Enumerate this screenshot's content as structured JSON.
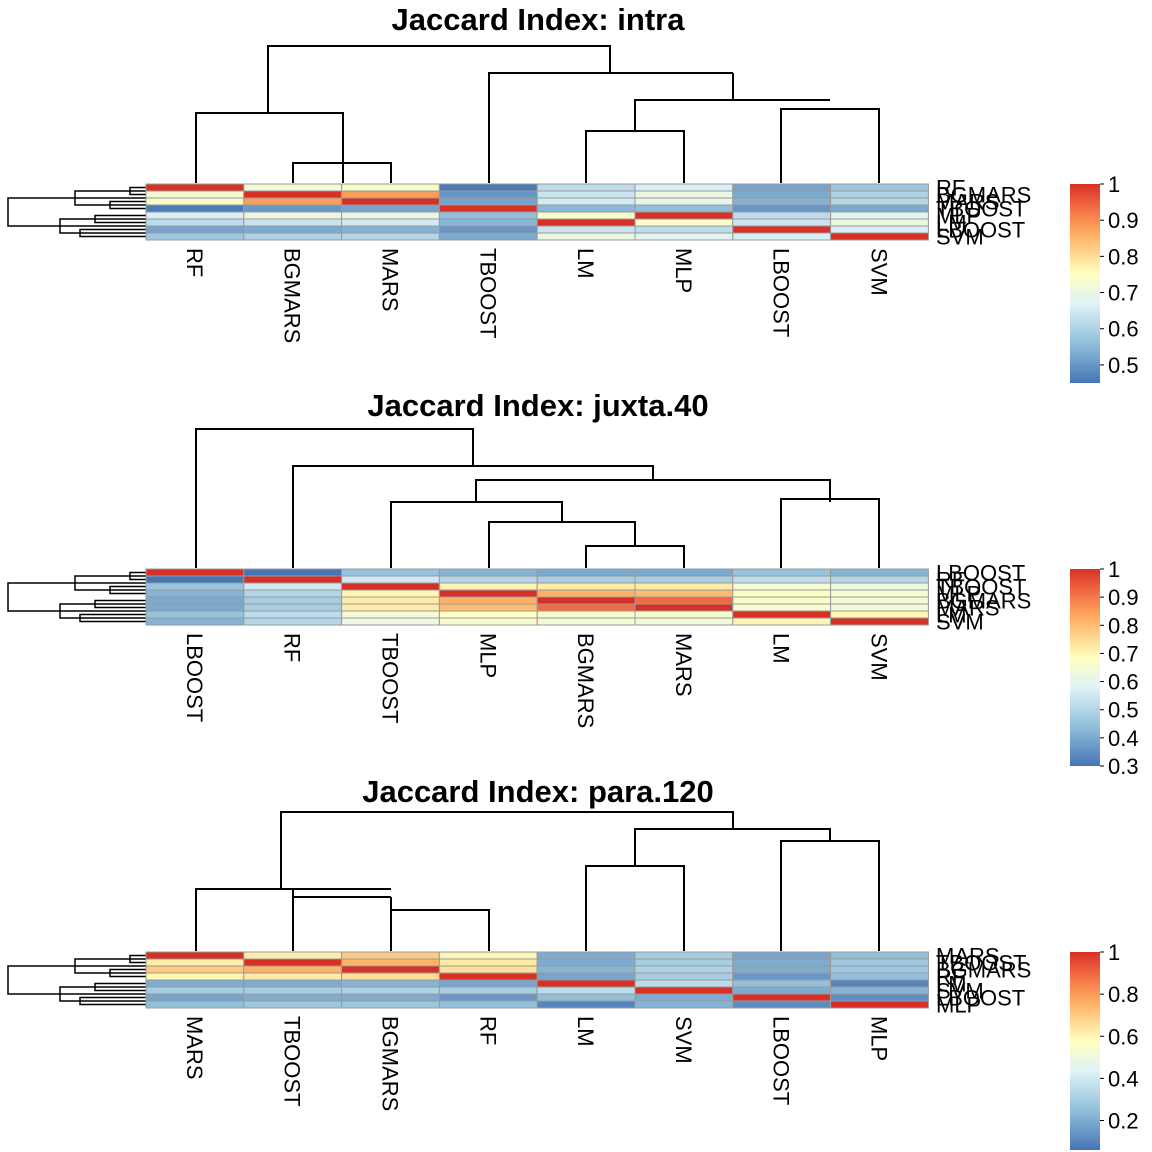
{
  "chart_data": [
    {
      "type": "heatmap",
      "title": "Jaccard Index: intra",
      "columns": [
        "RF",
        "BGMARS",
        "MARS",
        "TBOOST",
        "LM",
        "MLP",
        "LBOOST",
        "SVM"
      ],
      "rows": [
        "RF",
        "BGMARS",
        "MARS",
        "TBOOST",
        "MLP",
        "LM",
        "LBOOST",
        "SVM"
      ],
      "values": [
        [
          1.0,
          0.72,
          0.74,
          0.46,
          0.62,
          0.66,
          0.52,
          0.58
        ],
        [
          0.72,
          1.0,
          0.88,
          0.5,
          0.64,
          0.7,
          0.53,
          0.6
        ],
        [
          0.74,
          0.88,
          1.0,
          0.52,
          0.65,
          0.69,
          0.54,
          0.61
        ],
        [
          0.46,
          0.5,
          0.52,
          1.0,
          0.55,
          0.56,
          0.5,
          0.53
        ],
        [
          0.66,
          0.7,
          0.69,
          0.56,
          0.74,
          1.0,
          0.62,
          0.68
        ],
        [
          0.62,
          0.64,
          0.65,
          0.55,
          1.0,
          0.74,
          0.64,
          0.7
        ],
        [
          0.52,
          0.53,
          0.54,
          0.5,
          0.64,
          0.62,
          1.0,
          0.66
        ],
        [
          0.58,
          0.6,
          0.61,
          0.53,
          0.7,
          0.68,
          0.66,
          1.0
        ]
      ],
      "colorbar": {
        "min": 0.45,
        "max": 1.0,
        "ticks": [
          1,
          0.9,
          0.8,
          0.7,
          0.6,
          0.5
        ]
      }
    },
    {
      "type": "heatmap",
      "title": "Jaccard Index: juxta.40",
      "columns": [
        "LBOOST",
        "RF",
        "TBOOST",
        "MLP",
        "BGMARS",
        "MARS",
        "LM",
        "SVM"
      ],
      "rows": [
        "LBOOST",
        "RF",
        "TBOOST",
        "MLP",
        "BGMARS",
        "MARS",
        "LM",
        "SVM"
      ],
      "values": [
        [
          1.0,
          0.3,
          0.45,
          0.42,
          0.4,
          0.4,
          0.45,
          0.42
        ],
        [
          0.3,
          1.0,
          0.55,
          0.5,
          0.48,
          0.48,
          0.52,
          0.5
        ],
        [
          0.45,
          0.55,
          1.0,
          0.7,
          0.72,
          0.72,
          0.65,
          0.62
        ],
        [
          0.42,
          0.5,
          0.7,
          1.0,
          0.82,
          0.8,
          0.68,
          0.66
        ],
        [
          0.4,
          0.48,
          0.72,
          0.82,
          1.0,
          0.92,
          0.66,
          0.64
        ],
        [
          0.4,
          0.48,
          0.72,
          0.8,
          0.92,
          1.0,
          0.66,
          0.64
        ],
        [
          0.45,
          0.52,
          0.65,
          0.68,
          0.66,
          0.66,
          1.0,
          0.7
        ],
        [
          0.42,
          0.5,
          0.62,
          0.66,
          0.64,
          0.64,
          0.7,
          1.0
        ]
      ],
      "colorbar": {
        "min": 0.3,
        "max": 1.0,
        "ticks": [
          1,
          0.9,
          0.8,
          0.7,
          0.6,
          0.5,
          0.4,
          0.3
        ]
      }
    },
    {
      "type": "heatmap",
      "title": "Jaccard Index: para.120",
      "columns": [
        "MARS",
        "TBOOST",
        "BGMARS",
        "RF",
        "LM",
        "SVM",
        "LBOOST",
        "MLP"
      ],
      "rows": [
        "MARS",
        "TBOOST",
        "BGMARS",
        "RF",
        "LM",
        "SVM",
        "LBOOST",
        "MLP"
      ],
      "values": [
        [
          1.0,
          0.62,
          0.7,
          0.6,
          0.2,
          0.3,
          0.18,
          0.25
        ],
        [
          0.62,
          1.0,
          0.75,
          0.62,
          0.2,
          0.3,
          0.2,
          0.28
        ],
        [
          0.7,
          0.75,
          1.0,
          0.65,
          0.22,
          0.32,
          0.2,
          0.28
        ],
        [
          0.6,
          0.62,
          0.65,
          1.0,
          0.18,
          0.3,
          0.15,
          0.25
        ],
        [
          0.2,
          0.2,
          0.22,
          0.18,
          1.0,
          0.35,
          0.25,
          0.1
        ],
        [
          0.3,
          0.3,
          0.32,
          0.3,
          0.35,
          1.0,
          0.2,
          0.22
        ],
        [
          0.18,
          0.2,
          0.2,
          0.15,
          0.25,
          0.2,
          1.0,
          0.12
        ],
        [
          0.25,
          0.28,
          0.28,
          0.25,
          0.1,
          0.22,
          0.12,
          1.0
        ]
      ],
      "colorbar": {
        "min": 0.06,
        "max": 1.0,
        "ticks": [
          1,
          0.8,
          0.6,
          0.4,
          0.2
        ]
      }
    }
  ]
}
